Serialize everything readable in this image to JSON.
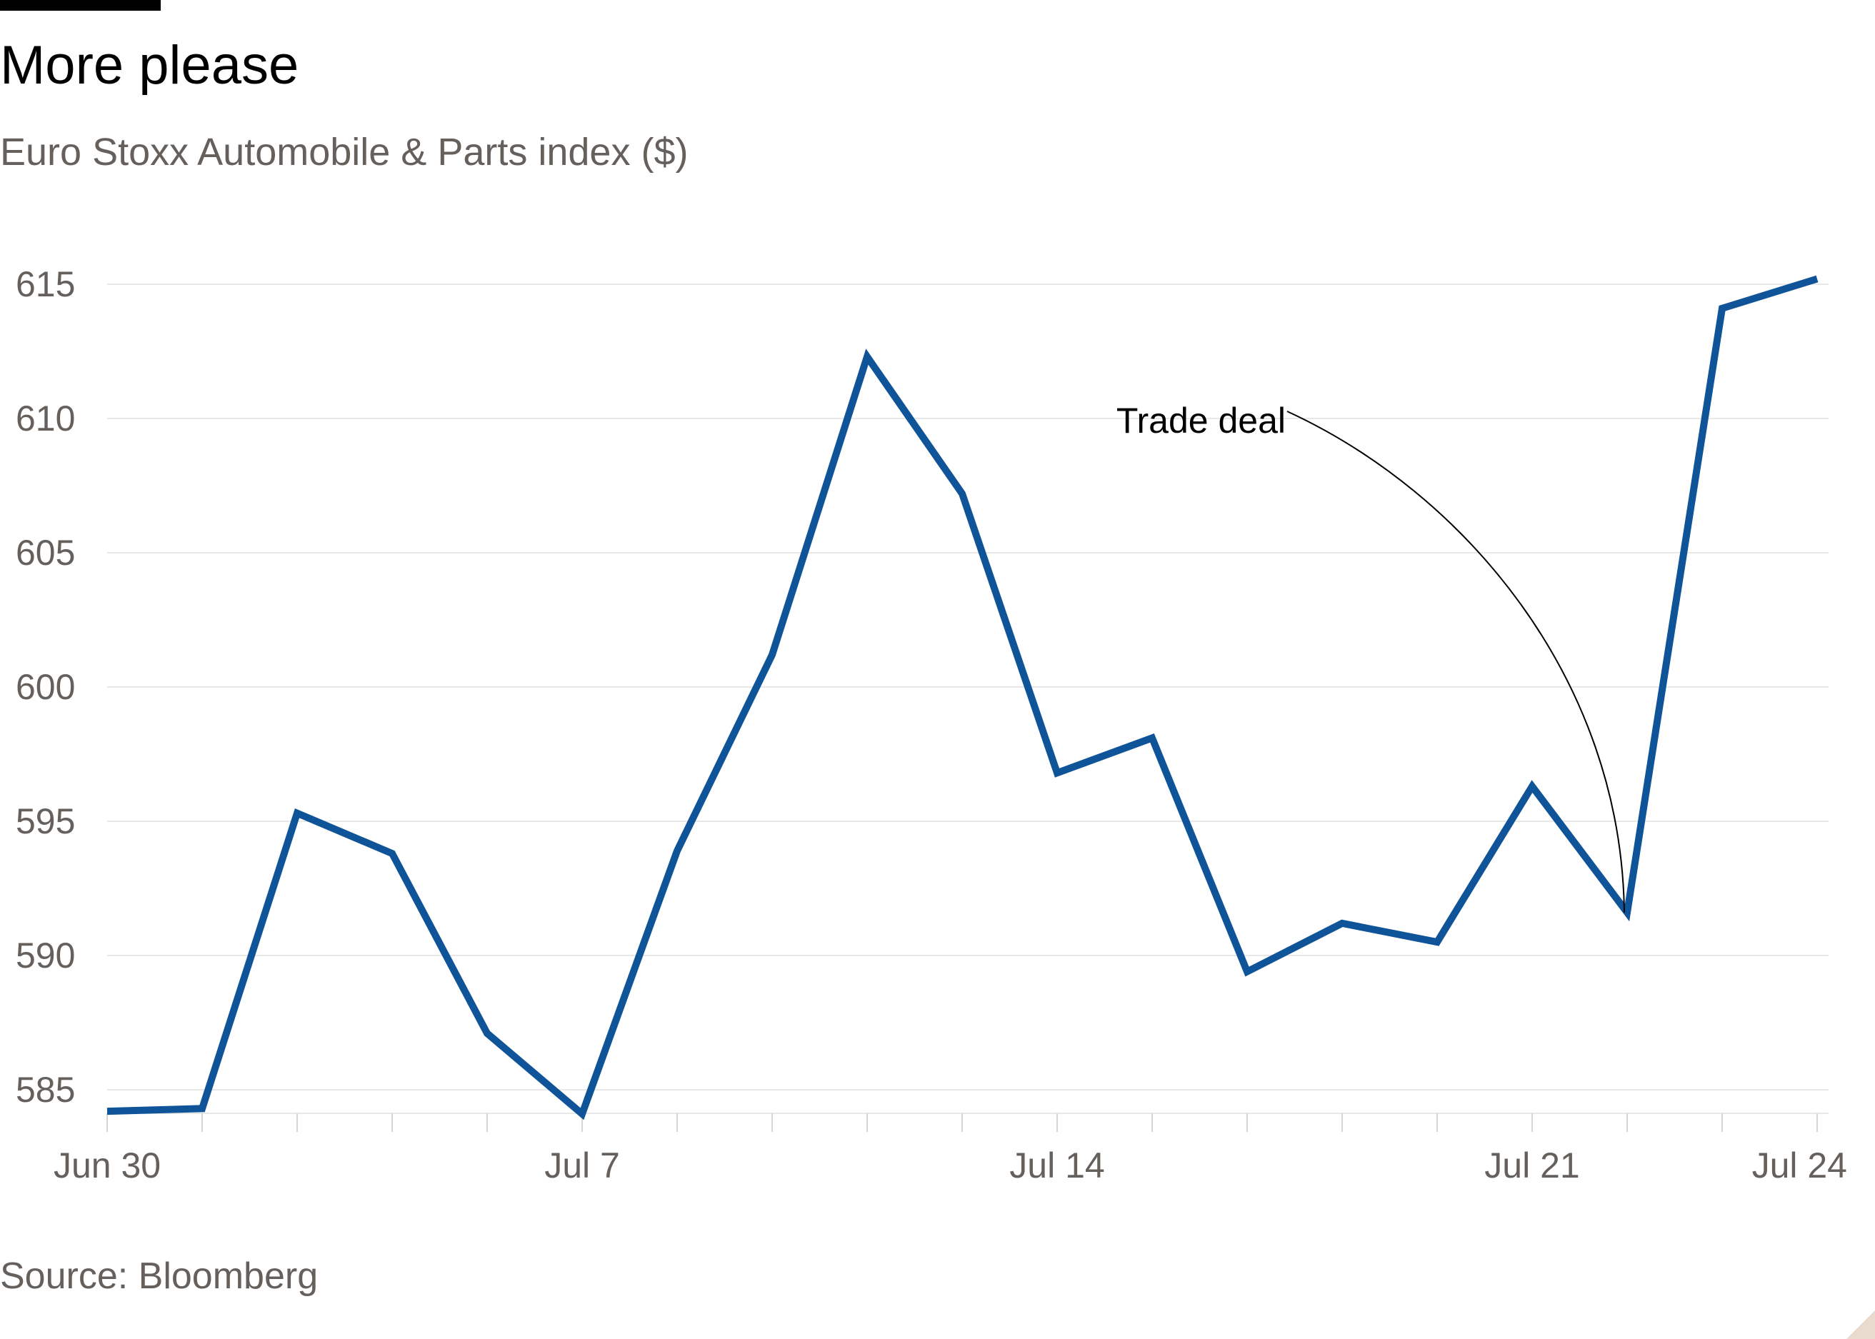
{
  "header": {
    "title": "More please",
    "subtitle": "Euro Stoxx Automobile & Parts index ($)"
  },
  "footer": {
    "source": "Source: Bloomberg"
  },
  "chart_data": {
    "type": "line",
    "title": "More please",
    "subtitle": "Euro Stoxx Automobile & Parts index ($)",
    "xlabel": "",
    "ylabel": "",
    "x": [
      "Jun 30",
      "Jul 1",
      "Jul 2",
      "Jul 3",
      "Jul 4",
      "Jul 7",
      "Jul 8",
      "Jul 9",
      "Jul 10",
      "Jul 11",
      "Jul 14",
      "Jul 15",
      "Jul 16",
      "Jul 17",
      "Jul 18",
      "Jul 21",
      "Jul 22",
      "Jul 23",
      "Jul 24"
    ],
    "series": [
      {
        "values": [
          584.2,
          584.3,
          595.3,
          593.8,
          587.1,
          584.1,
          593.9,
          601.2,
          612.3,
          607.2,
          596.8,
          598.1,
          589.4,
          591.2,
          590.5,
          596.3,
          591.6,
          614.1,
          615.2
        ],
        "color": "#0f5499"
      }
    ],
    "x_tick_labels": [
      "Jun 30",
      "Jul 7",
      "Jul 14",
      "Jul 21",
      "Jul 24"
    ],
    "x_tick_indices": [
      0,
      5,
      10,
      15,
      18
    ],
    "y_ticks": [
      585,
      590,
      595,
      600,
      605,
      610,
      615
    ],
    "ylim": [
      584.2,
      615
    ],
    "grid": "horizontal",
    "annotations": [
      {
        "text": "Trade deal",
        "x_index": 16
      }
    ],
    "colors": {
      "line": "#0f5499",
      "grid": "#e8e8e8",
      "axis": "#66605c",
      "label": "#66605c"
    }
  }
}
